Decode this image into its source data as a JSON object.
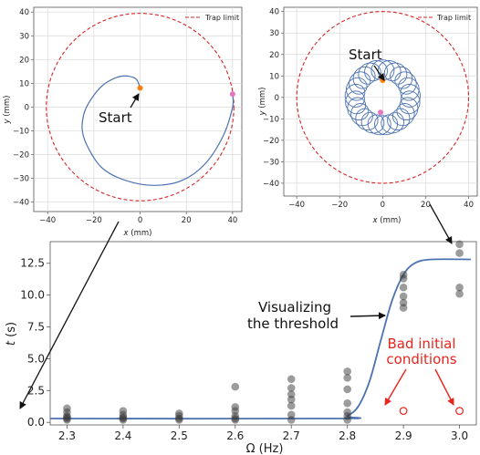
{
  "chart_data": [
    {
      "type": "line",
      "panel": "top-left",
      "xlabel_var": "x",
      "xlabel_unit": "(mm)",
      "ylabel_var": "y",
      "ylabel_unit": "(mm)",
      "xlim": [
        -46,
        44
      ],
      "ylim": [
        -44,
        42
      ],
      "xticks": [
        -40,
        -20,
        0,
        20,
        40
      ],
      "yticks": [
        -40,
        -30,
        -20,
        -10,
        0,
        10,
        20,
        30,
        40
      ],
      "grid": true,
      "legend": {
        "position": "top-right",
        "label": "Trap limit"
      },
      "trap_radius": 40,
      "start_point": [
        0,
        8
      ],
      "end_point": [
        40,
        5.5
      ],
      "annotation": "Start",
      "trajectory_x": [
        0,
        -2,
        -8,
        -15,
        -20,
        -24,
        -25,
        -22,
        -16,
        -6,
        6,
        18,
        28,
        36,
        40,
        40
      ],
      "trajectory_y": [
        8,
        12,
        13,
        10,
        5,
        -2,
        -10,
        -18,
        -26,
        -31,
        -33,
        -31,
        -24,
        -12,
        0,
        5.5
      ]
    },
    {
      "type": "line",
      "panel": "top-right",
      "xlabel_var": "x",
      "xlabel_unit": "(mm)",
      "ylabel_var": "y",
      "ylabel_unit": "(mm)",
      "xlim": [
        -46,
        44
      ],
      "ylim": [
        -46,
        42
      ],
      "xticks": [
        -40,
        -20,
        0,
        20,
        40
      ],
      "yticks": [
        -40,
        -30,
        -20,
        -10,
        0,
        10,
        20,
        30,
        40
      ],
      "grid": true,
      "legend": {
        "position": "top-right",
        "label": "Trap limit"
      },
      "trap_radius": 40,
      "start_point": [
        0,
        8
      ],
      "end_point": [
        -1,
        -7
      ],
      "annotation": "Start",
      "pattern": "looping orbit",
      "orbit_center": [
        0,
        0
      ],
      "orbit_radius": 13,
      "loop_radius": 4.5
    },
    {
      "type": "scatter",
      "panel": "bottom",
      "xlabel": "Ω (Hz)",
      "ylabel_var": "t",
      "ylabel_unit": "(s)",
      "xlim": [
        2.27,
        3.03
      ],
      "ylim": [
        -0.2,
        14.2
      ],
      "xticks": [
        2.3,
        2.4,
        2.5,
        2.6,
        2.7,
        2.8,
        2.9,
        3.0
      ],
      "yticks": [
        0.0,
        2.5,
        5.0,
        7.5,
        10.0,
        12.5
      ],
      "grid": false,
      "series": [
        {
          "marker": "gray circle",
          "points": [
            [
              2.3,
              1.1
            ],
            [
              2.3,
              0.8
            ],
            [
              2.3,
              0.5
            ],
            [
              2.3,
              0.4
            ],
            [
              2.3,
              0.3
            ],
            [
              2.3,
              0.2
            ],
            [
              2.4,
              0.9
            ],
            [
              2.4,
              0.6
            ],
            [
              2.4,
              0.4
            ],
            [
              2.4,
              0.3
            ],
            [
              2.4,
              0.2
            ],
            [
              2.5,
              0.7
            ],
            [
              2.5,
              0.5
            ],
            [
              2.5,
              0.3
            ],
            [
              2.5,
              0.2
            ],
            [
              2.6,
              2.8
            ],
            [
              2.6,
              1.2
            ],
            [
              2.6,
              0.9
            ],
            [
              2.6,
              0.5
            ],
            [
              2.6,
              0.3
            ],
            [
              2.6,
              0.2
            ],
            [
              2.7,
              3.4
            ],
            [
              2.7,
              2.7
            ],
            [
              2.7,
              2.2
            ],
            [
              2.7,
              1.8
            ],
            [
              2.7,
              1.3
            ],
            [
              2.7,
              0.6
            ],
            [
              2.7,
              0.2
            ],
            [
              2.8,
              4.0
            ],
            [
              2.8,
              3.5
            ],
            [
              2.8,
              2.6
            ],
            [
              2.8,
              1.5
            ],
            [
              2.8,
              0.8
            ],
            [
              2.8,
              0.5
            ],
            [
              2.8,
              0.2
            ],
            [
              2.9,
              11.6
            ],
            [
              2.9,
              11.3
            ],
            [
              2.9,
              10.6
            ],
            [
              2.9,
              9.9
            ],
            [
              2.9,
              9.4
            ],
            [
              2.9,
              9.0
            ],
            [
              3.0,
              14.0
            ],
            [
              3.0,
              13.3
            ],
            [
              3.0,
              10.6
            ],
            [
              3.0,
              10.1
            ]
          ]
        },
        {
          "marker": "open red circle",
          "points": [
            [
              2.9,
              0.9
            ],
            [
              3.0,
              0.9
            ]
          ]
        },
        {
          "marker": "blue line",
          "points": [
            [
              2.27,
              0.3
            ],
            [
              2.78,
              0.3
            ],
            [
              2.8,
              0.5
            ],
            [
              2.82,
              1.3
            ],
            [
              2.84,
              3.3
            ],
            [
              2.86,
              6.5
            ],
            [
              2.88,
              9.6
            ],
            [
              2.9,
              11.6
            ],
            [
              2.92,
              12.5
            ],
            [
              2.95,
              12.8
            ],
            [
              3.02,
              12.8
            ]
          ]
        }
      ],
      "annotations": [
        "Visualizing",
        "the threshold",
        "Bad initial",
        "conditions"
      ]
    }
  ]
}
